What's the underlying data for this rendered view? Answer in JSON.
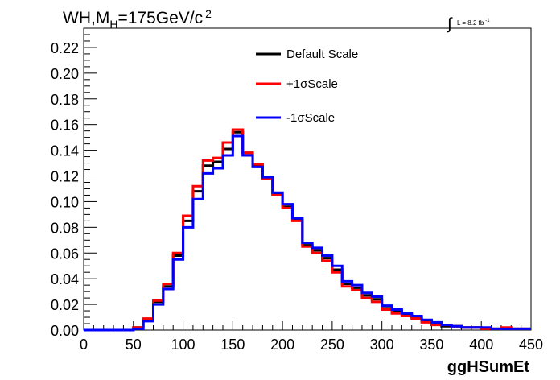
{
  "title": {
    "main": "WH,M",
    "sub": "H",
    "rest": "=175GeV/c",
    "sup": "2"
  },
  "lumi": {
    "integral": "∫",
    "text": "L = 8.2 fb",
    "sup": "-1"
  },
  "chart_data": {
    "type": "line",
    "xlabel": "ggHSumEt",
    "ylabel": "",
    "xlim": [
      0,
      450
    ],
    "ylim": [
      0,
      0.235
    ],
    "x_ticks": [
      0,
      50,
      100,
      150,
      200,
      250,
      300,
      350,
      400,
      450
    ],
    "x_tick_labels": [
      "0",
      "50",
      "100",
      "150",
      "200",
      "250",
      "300",
      "350",
      "400",
      "450"
    ],
    "y_ticks": [
      0,
      0.02,
      0.04,
      0.06,
      0.08,
      0.1,
      0.12,
      0.14,
      0.16,
      0.18,
      0.2,
      0.22
    ],
    "y_tick_labels": [
      "0.00",
      "0.02",
      "0.04",
      "0.06",
      "0.08",
      "0.10",
      "0.12",
      "0.14",
      "0.16",
      "0.18",
      "0.20",
      "0.22"
    ],
    "grid": false,
    "legend_position": "top-center",
    "bin_edges": [
      0,
      10,
      20,
      30,
      40,
      50,
      60,
      70,
      80,
      90,
      100,
      110,
      120,
      130,
      140,
      150,
      160,
      170,
      180,
      190,
      200,
      210,
      220,
      230,
      240,
      250,
      260,
      270,
      280,
      290,
      300,
      310,
      320,
      330,
      340,
      350,
      360,
      370,
      380,
      390,
      400,
      410,
      420,
      430,
      440,
      450
    ],
    "series": [
      {
        "name": "Default Scale",
        "color": "#000000",
        "values": [
          0,
          0,
          0,
          0,
          0,
          0.002,
          0.008,
          0.022,
          0.034,
          0.058,
          0.085,
          0.108,
          0.128,
          0.131,
          0.141,
          0.154,
          0.138,
          0.128,
          0.118,
          0.106,
          0.096,
          0.086,
          0.066,
          0.062,
          0.056,
          0.047,
          0.036,
          0.033,
          0.027,
          0.024,
          0.017,
          0.015,
          0.012,
          0.01,
          0.007,
          0.005,
          0.003,
          0.003,
          0.002,
          0.002,
          0.001,
          0.001,
          0.001,
          0.001,
          0.001
        ]
      },
      {
        "name": "+1σScale",
        "color": "#ff0000",
        "values": [
          0,
          0,
          0,
          0,
          0,
          0.002,
          0.009,
          0.023,
          0.036,
          0.06,
          0.089,
          0.112,
          0.132,
          0.134,
          0.146,
          0.156,
          0.138,
          0.129,
          0.118,
          0.105,
          0.095,
          0.085,
          0.065,
          0.06,
          0.054,
          0.045,
          0.034,
          0.031,
          0.025,
          0.022,
          0.016,
          0.013,
          0.011,
          0.009,
          0.006,
          0.004,
          0.004,
          0.003,
          0.002,
          0.002,
          0.001,
          0.001,
          0.002,
          0.001,
          0.001
        ]
      },
      {
        "name": "-1σScale",
        "color": "#0000ff",
        "values": [
          0,
          0,
          0,
          0,
          0,
          0.001,
          0.007,
          0.02,
          0.032,
          0.055,
          0.08,
          0.102,
          0.122,
          0.126,
          0.136,
          0.151,
          0.136,
          0.127,
          0.119,
          0.107,
          0.098,
          0.087,
          0.068,
          0.064,
          0.058,
          0.05,
          0.038,
          0.035,
          0.029,
          0.026,
          0.019,
          0.016,
          0.013,
          0.011,
          0.008,
          0.006,
          0.004,
          0.003,
          0.002,
          0.002,
          0.002,
          0.001,
          0.001,
          0.001,
          0.001
        ]
      }
    ]
  }
}
